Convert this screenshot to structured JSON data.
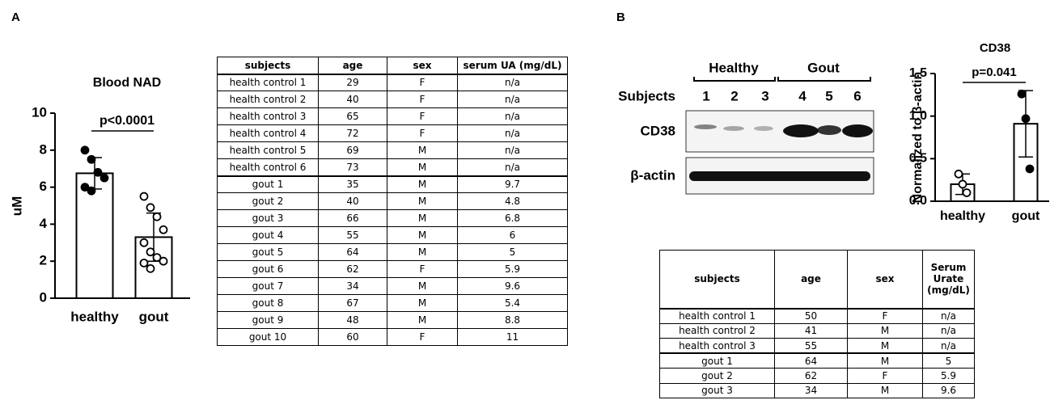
{
  "panel_labels": [
    "A",
    "B"
  ],
  "chart_data": [
    {
      "type": "bar",
      "title": "Blood NAD",
      "y_label": "uM",
      "annotation": "p<0.0001",
      "categories": [
        "healthy",
        "gout"
      ],
      "values": [
        6.75,
        3.3
      ],
      "errors": [
        0.85,
        1.3
      ],
      "points": [
        [
          8.0,
          7.5,
          6.8,
          6.5,
          6.0,
          5.8
        ],
        [
          5.5,
          4.9,
          4.4,
          3.7,
          3.0,
          2.5,
          2.2,
          2.0,
          1.9,
          1.6
        ]
      ],
      "point_colors": [
        "#000000",
        "#ffffff"
      ],
      "color": "#ffffff",
      "ylim": [
        0,
        10
      ],
      "yticks": [
        0,
        2,
        4,
        6,
        8,
        10
      ]
    },
    {
      "type": "bar",
      "title": "CD38",
      "y_label": "Normalized to β-actin",
      "annotation": "p=0.041",
      "categories": [
        "healthy",
        "gout"
      ],
      "values": [
        0.2,
        0.91
      ],
      "errors": [
        0.12,
        0.39
      ],
      "points": [
        [
          0.32,
          0.2,
          0.1
        ],
        [
          1.26,
          0.97,
          0.38
        ]
      ],
      "point_colors": [
        "#ffffff",
        "#000000"
      ],
      "color": "#ffffff",
      "ylim": [
        0,
        1.5
      ],
      "yticks": [
        {
          "value": 0,
          "label": "0.0"
        },
        0.5,
        {
          "value": 1,
          "label": "1.0"
        },
        1.5
      ]
    }
  ],
  "blot": {
    "groups": [
      "Healthy",
      "Gout"
    ],
    "lane_title": "Subjects",
    "lanes": [
      "1",
      "2",
      "3",
      "4",
      "5",
      "6"
    ],
    "rows": [
      "CD38",
      "β-actin"
    ]
  },
  "tables": [
    {
      "header": [
        "subjects",
        "age",
        "sex",
        "serum UA (mg/dL)"
      ],
      "rows": [
        [
          "health control 1",
          "29",
          "F",
          "n/a"
        ],
        [
          "health control 2",
          "40",
          "F",
          "n/a"
        ],
        [
          "health control 3",
          "65",
          "F",
          "n/a"
        ],
        [
          "health control 4",
          "72",
          "F",
          "n/a"
        ],
        [
          "health control 5",
          "69",
          "M",
          "n/a"
        ],
        [
          "health control 6",
          "73",
          "M",
          "n/a"
        ],
        [
          "gout 1",
          "35",
          "M",
          "9.7"
        ],
        [
          "gout 2",
          "40",
          "M",
          "4.8"
        ],
        [
          "gout 3",
          "66",
          "M",
          "6.8"
        ],
        [
          "gout 4",
          "55",
          "M",
          "6"
        ],
        [
          "gout 5",
          "64",
          "M",
          "5"
        ],
        [
          "gout 6",
          "62",
          "F",
          "5.9"
        ],
        [
          "gout 7",
          "34",
          "M",
          "9.6"
        ],
        [
          "gout 8",
          "67",
          "M",
          "5.4"
        ],
        [
          "gout 9",
          "48",
          "M",
          "8.8"
        ],
        [
          "gout 10",
          "60",
          "F",
          "11"
        ]
      ]
    },
    {
      "header": [
        "subjects",
        "age",
        "sex",
        "Serum Urate (mg/dL)"
      ],
      "rows": [
        [
          "health control 1",
          "50",
          "F",
          "n/a"
        ],
        [
          "health control 2",
          "41",
          "M",
          "n/a"
        ],
        [
          "health control 3",
          "55",
          "M",
          "n/a"
        ],
        [
          "gout 1",
          "64",
          "M",
          "5"
        ],
        [
          "gout 2",
          "62",
          "F",
          "5.9"
        ],
        [
          "gout 3",
          "34",
          "M",
          "9.6"
        ]
      ]
    }
  ]
}
